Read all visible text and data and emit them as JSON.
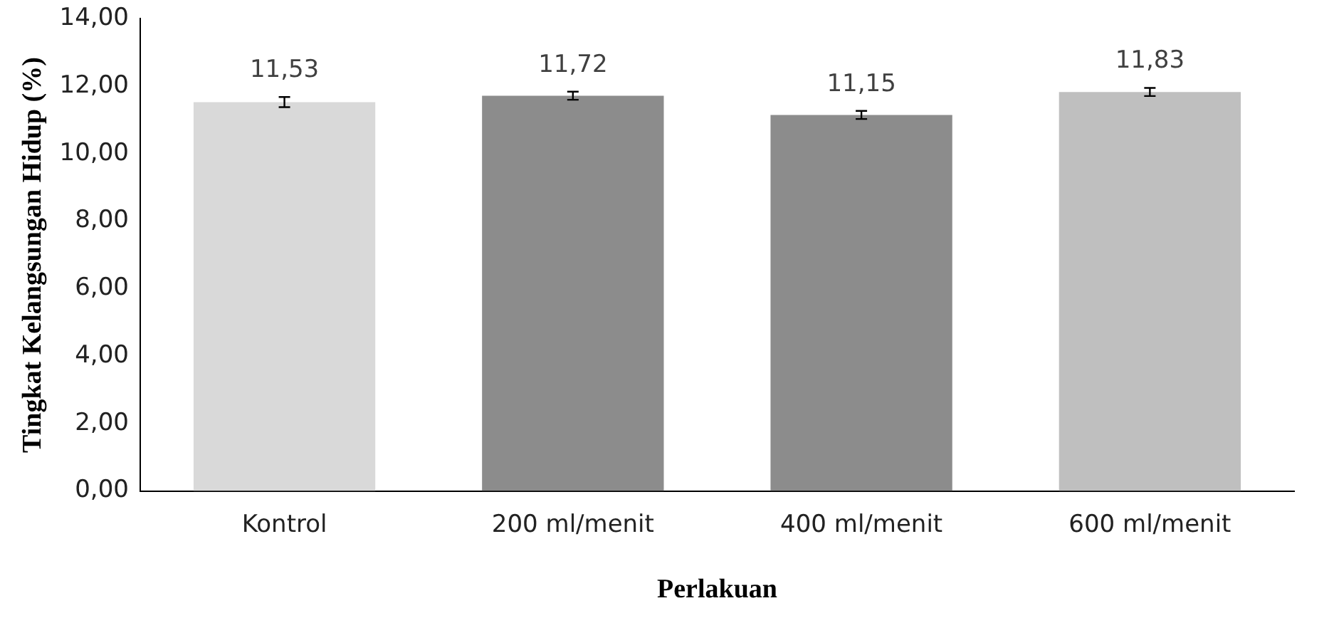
{
  "chart_data": {
    "type": "bar",
    "xlabel": "Perlakuan",
    "ylabel": "Tingkat Kelangsungan Hidup (%)",
    "categories": [
      "Kontrol",
      "200 ml/menit",
      "400 ml/menit",
      "600 ml/menit"
    ],
    "values": [
      11.53,
      11.72,
      11.15,
      11.83
    ],
    "value_labels": [
      "11,53",
      "11,72",
      "11,15",
      "11,83"
    ],
    "errors": [
      0.15,
      0.12,
      0.12,
      0.12
    ],
    "colors": [
      "#d9d9d9",
      "#8c8c8c",
      "#8c8c8c",
      "#bfbfbf"
    ],
    "ylim": [
      0,
      14
    ],
    "yticks": [
      {
        "value": 0,
        "label": "0,00"
      },
      {
        "value": 2,
        "label": "2,00"
      },
      {
        "value": 4,
        "label": "4,00"
      },
      {
        "value": 6,
        "label": "6,00"
      },
      {
        "value": 8,
        "label": "8,00"
      },
      {
        "value": 10,
        "label": "10,00"
      },
      {
        "value": 12,
        "label": "12,00"
      },
      {
        "value": 14,
        "label": "14,00"
      }
    ],
    "grid": false,
    "legend": false
  }
}
